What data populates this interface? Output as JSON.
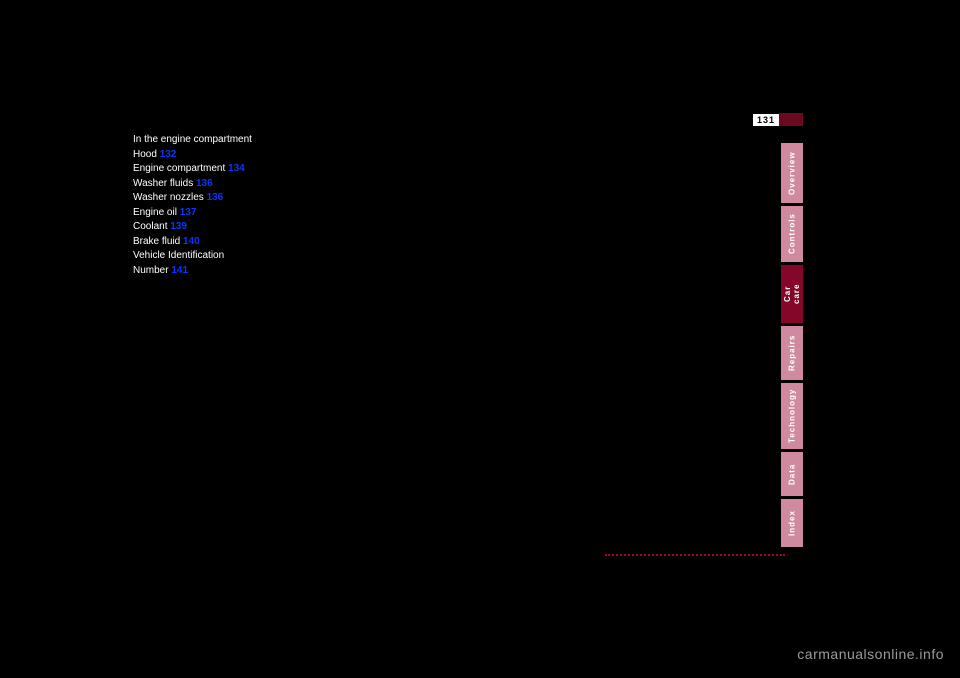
{
  "page": {
    "page_number": "131",
    "tabs": [
      {
        "label": "Overview",
        "bg": "#cf8aa0",
        "color": "#ffffff",
        "height": 60
      },
      {
        "label": "Controls",
        "bg": "#cf8aa0",
        "color": "#ffffff",
        "height": 56
      },
      {
        "label": "Car care",
        "bg": "#84072a",
        "color": "#ffffff",
        "height": 58
      },
      {
        "label": "Repairs",
        "bg": "#cf8aa0",
        "color": "#ffffff",
        "height": 54
      },
      {
        "label": "Technology",
        "bg": "#cf8aa0",
        "color": "#ffffff",
        "height": 66
      },
      {
        "label": "Data",
        "bg": "#cf8aa0",
        "color": "#ffffff",
        "height": 44
      },
      {
        "label": "Index",
        "bg": "#cf8aa0",
        "color": "#ffffff",
        "height": 48
      }
    ],
    "content": {
      "lines": [
        {
          "parts": [
            {
              "t": "In the engine compartment"
            }
          ]
        },
        {
          "parts": [
            {
              "t": "Hood"
            },
            {
              "t": "132",
              "link": true
            }
          ]
        },
        {
          "parts": [
            {
              "t": "Engine compartment"
            },
            {
              "t": "134",
              "link": true
            }
          ]
        },
        {
          "parts": [
            {
              "t": "Washer fluids"
            },
            {
              "t": "136",
              "link": true
            }
          ]
        },
        {
          "parts": [
            {
              "t": "Washer nozzles"
            },
            {
              "t": "136",
              "link": true
            }
          ]
        },
        {
          "parts": [
            {
              "t": "Engine oil"
            },
            {
              "t": "137",
              "link": true
            }
          ]
        },
        {
          "parts": [
            {
              "t": "Coolant"
            },
            {
              "t": "139",
              "link": true
            }
          ]
        },
        {
          "parts": [
            {
              "t": "Brake fluid"
            },
            {
              "t": "140",
              "link": true
            }
          ]
        },
        {
          "parts": [
            {
              "t": "Vehicle Identification"
            }
          ]
        },
        {
          "parts": [
            {
              "t": "Number"
            },
            {
              "t": "141",
              "link": true
            }
          ]
        }
      ]
    }
  },
  "watermark": "carmanualsonline.info",
  "colors": {
    "page_bg": "#000000",
    "text": "#ffffff",
    "link": "#0b35ff",
    "tab_inactive": "#cf8aa0",
    "tab_active": "#84072a",
    "page_number_dark": "#6b0a1f",
    "dotted": "#a8003a"
  }
}
